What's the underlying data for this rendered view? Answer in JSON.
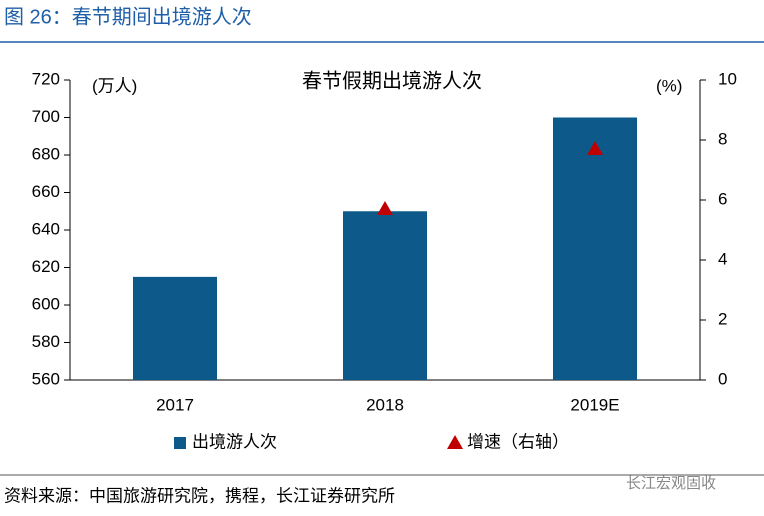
{
  "header": {
    "title": "图 26：春节期间出境游人次"
  },
  "chart_data": {
    "type": "bar",
    "title": "春节假期出境游人次",
    "y_label": "(万人)",
    "y2_label": "(%)",
    "categories": [
      "2017",
      "2018",
      "2019E"
    ],
    "series": [
      {
        "name": "出境游人次",
        "color": "#0d5a8a",
        "type": "bar",
        "values": [
          615,
          650,
          700
        ]
      },
      {
        "name": "增速（右轴）",
        "color": "#c00000",
        "type": "marker",
        "axis": "y2",
        "values": [
          null,
          5.7,
          7.7
        ]
      }
    ],
    "ylim": [
      560,
      720
    ],
    "yticks": [
      560,
      580,
      600,
      620,
      640,
      660,
      680,
      700,
      720
    ],
    "y2lim": [
      0,
      10
    ],
    "y2ticks": [
      0,
      2,
      4,
      6,
      8,
      10
    ],
    "grid": false
  },
  "footer": {
    "source": "资料来源：中国旅游研究院，携程，长江证券研究所",
    "watermark": "长江宏观固收"
  }
}
